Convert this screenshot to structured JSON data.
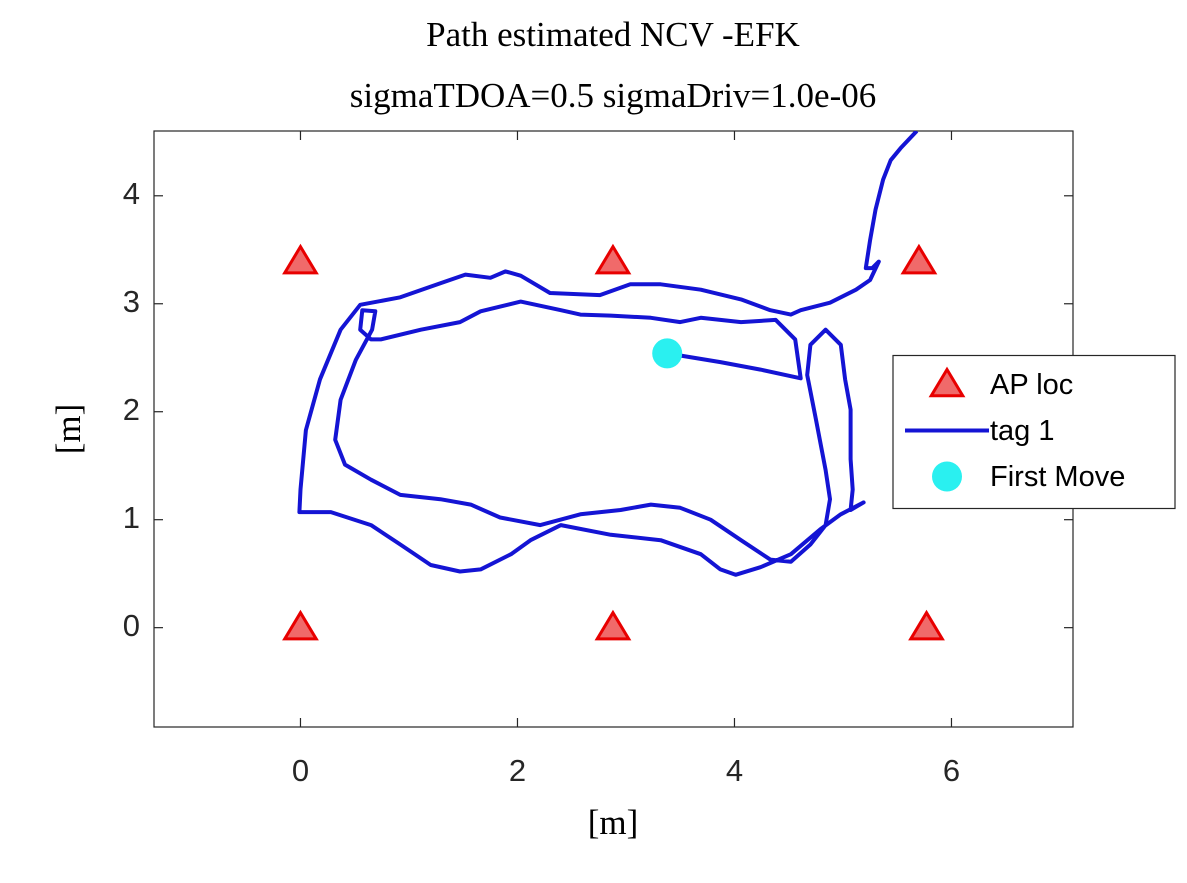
{
  "chart_data": {
    "type": "scatter",
    "title": "Path estimated NCV -EFK",
    "subtitle": "sigmaTDOA=0.5 sigmaDriv=1.0e-06",
    "xlabel": "[m]",
    "ylabel": "[m]",
    "xlim": [
      -1.35,
      7.12
    ],
    "ylim": [
      -0.92,
      4.6
    ],
    "xticks": [
      0,
      2,
      4,
      6
    ],
    "yticks": [
      0,
      1,
      2,
      3,
      4
    ],
    "grid": false,
    "legend": "east",
    "series": [
      {
        "name": "AP loc",
        "marker": "triangle",
        "color": "#f06a6a",
        "x": [
          0,
          2.88,
          5.7,
          0,
          2.88,
          5.77
        ],
        "values": [
          3.39,
          3.39,
          3.39,
          0,
          0,
          0
        ]
      },
      {
        "name": "tag 1",
        "marker": "none",
        "color": "#1414d4",
        "x": [
          3.38,
          3.87,
          4.24,
          4.61,
          4.56,
          4.38,
          4.06,
          3.69,
          3.5,
          3.23,
          2.86,
          2.58,
          2.4,
          2.03,
          1.66,
          1.47,
          1.11,
          0.74,
          0.65,
          0.55,
          0.57,
          0.69,
          0.66,
          0.51,
          0.37,
          0.32,
          0.41,
          0.65,
          0.92,
          1.29,
          1.57,
          1.84,
          2.21,
          2.58,
          2.95,
          3.23,
          3.5,
          3.78,
          4.06,
          4.33,
          4.52,
          4.7,
          4.84,
          4.88,
          4.84,
          4.75,
          4.67,
          4.7,
          4.84,
          4.98,
          5.02,
          5.07,
          5.07,
          5.09,
          5.07,
          5.19,
          4.98,
          4.79,
          4.52,
          4.24,
          4.01,
          3.87,
          3.69,
          3.32,
          2.86,
          2.4,
          2.12,
          1.94,
          1.66,
          1.47,
          1.2,
          0.92,
          0.65,
          0.28,
          -0.01,
          0,
          0.05,
          0.18,
          0.37,
          0.55,
          0.92,
          1.29,
          1.52,
          1.75,
          1.89,
          2.03,
          2.3,
          2.76,
          3.04,
          3.32,
          3.69,
          4.06,
          4.33,
          4.52,
          4.61,
          4.88,
          5.12,
          5.25,
          5.33,
          5.27,
          5.21,
          5.25,
          5.3,
          5.37,
          5.44,
          5.53,
          5.68
        ],
        "values": [
          2.54,
          2.46,
          2.39,
          2.31,
          2.67,
          2.85,
          2.83,
          2.87,
          2.83,
          2.87,
          2.89,
          2.9,
          2.94,
          3.02,
          2.93,
          2.83,
          2.76,
          2.67,
          2.67,
          2.76,
          2.94,
          2.93,
          2.76,
          2.48,
          2.11,
          1.74,
          1.51,
          1.37,
          1.23,
          1.19,
          1.14,
          1.02,
          0.95,
          1.05,
          1.09,
          1.14,
          1.11,
          1,
          0.81,
          0.63,
          0.61,
          0.77,
          0.95,
          1.19,
          1.46,
          1.93,
          2.34,
          2.62,
          2.76,
          2.62,
          2.3,
          2.02,
          1.56,
          1.28,
          1.09,
          1.16,
          1.05,
          0.91,
          0.68,
          0.56,
          0.49,
          0.54,
          0.68,
          0.81,
          0.86,
          0.95,
          0.81,
          0.68,
          0.54,
          0.52,
          0.58,
          0.77,
          0.95,
          1.07,
          1.07,
          1.28,
          1.83,
          2.3,
          2.76,
          2.99,
          3.06,
          3.19,
          3.27,
          3.24,
          3.3,
          3.26,
          3.1,
          3.08,
          3.18,
          3.18,
          3.13,
          3.04,
          2.94,
          2.9,
          2.94,
          3.01,
          3.13,
          3.22,
          3.39,
          3.33,
          3.33,
          3.59,
          3.87,
          4.15,
          4.33,
          4.44,
          4.6
        ]
      },
      {
        "name": "First Move",
        "marker": "circle",
        "color": "#2af0f0",
        "x": [
          3.38
        ],
        "values": [
          2.54
        ]
      }
    ]
  }
}
